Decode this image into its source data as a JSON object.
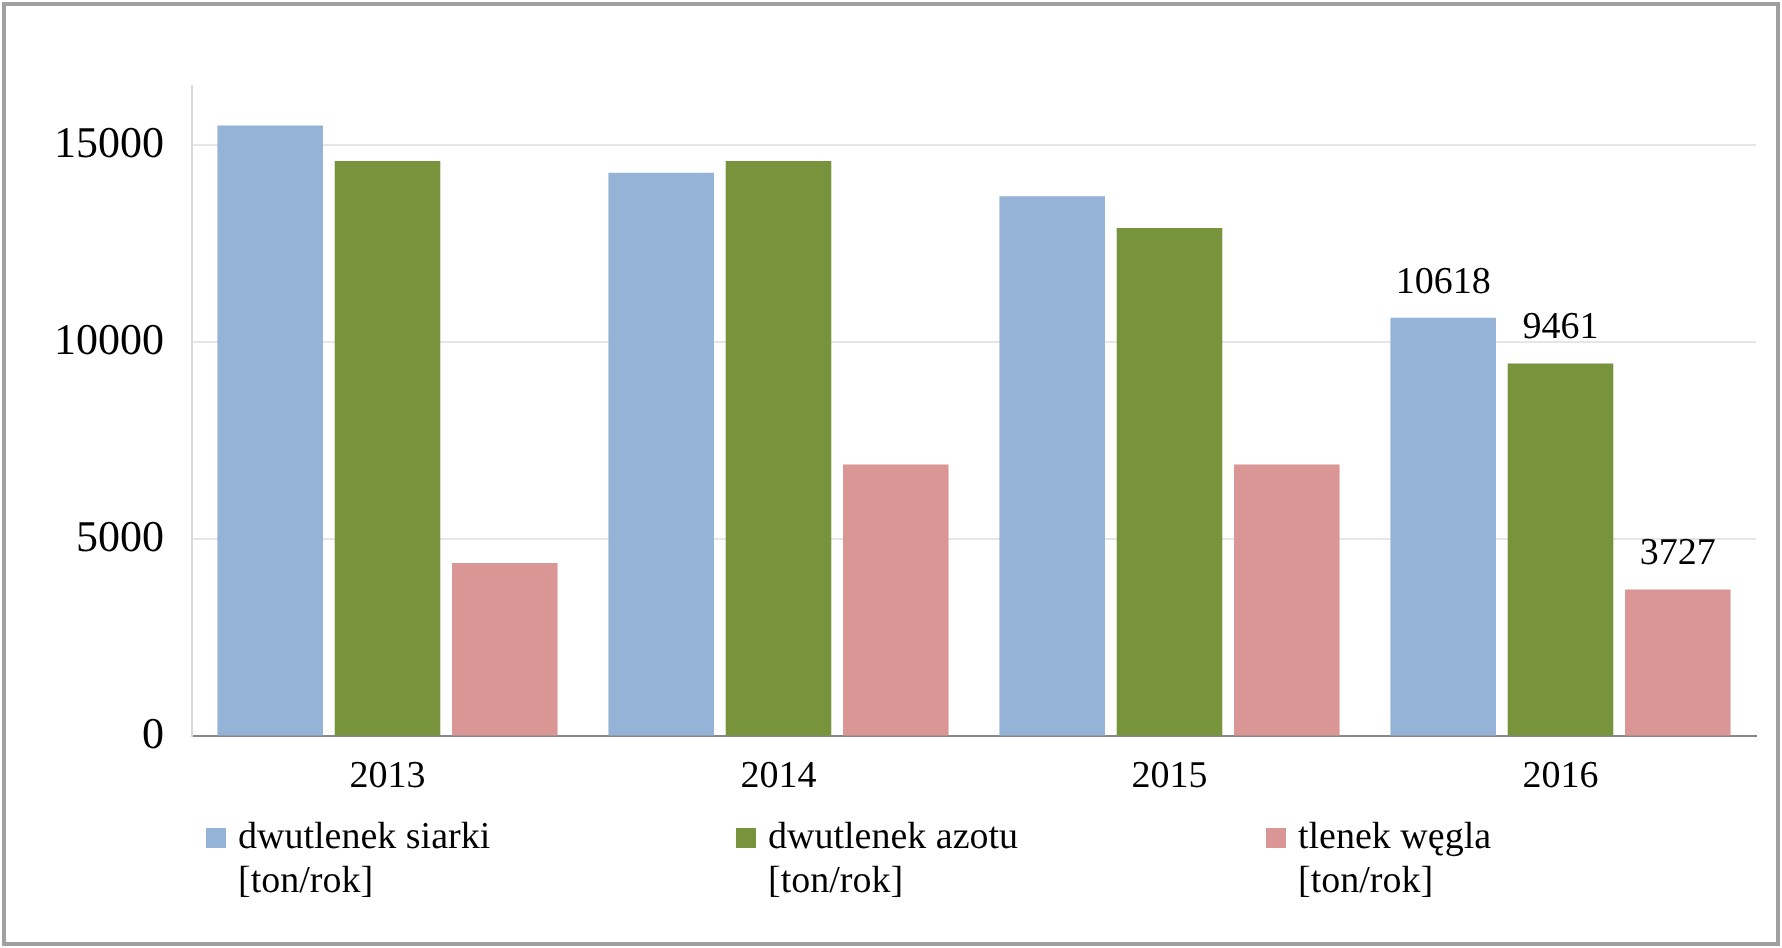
{
  "chart_data": {
    "type": "bar",
    "categories": [
      "2013",
      "2014",
      "2015",
      "2016"
    ],
    "series": [
      {
        "name": "dwutlenek siarki [ton/rok]",
        "color": "#95b3d7",
        "values": [
          15500,
          14300,
          13700,
          10618
        ],
        "value_labels": [
          null,
          null,
          null,
          "10618"
        ]
      },
      {
        "name": "dwutlenek azotu [ton/rok]",
        "color": "#77933c",
        "values": [
          14600,
          14600,
          12900,
          9461
        ],
        "value_labels": [
          null,
          null,
          null,
          "9461"
        ]
      },
      {
        "name": "tlenek węgla [ton/rok]",
        "color": "#d99694",
        "values": [
          4400,
          6900,
          6900,
          3727
        ],
        "value_labels": [
          null,
          null,
          null,
          "3727"
        ]
      }
    ],
    "ylim": [
      0,
      16500
    ],
    "yticks": [
      0,
      5000,
      10000,
      15000
    ],
    "grid": "y",
    "legend": "bottom"
  }
}
